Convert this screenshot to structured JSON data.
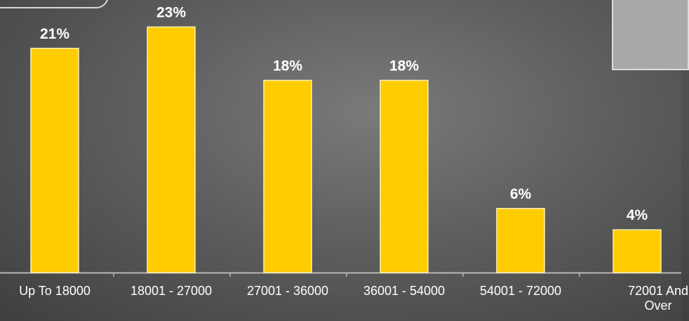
{
  "chart_data": {
    "type": "bar",
    "categories": [
      [
        "Up To 18000"
      ],
      [
        "18001 - 27000"
      ],
      [
        "27001 - 36000"
      ],
      [
        "36001 - 54000"
      ],
      [
        "54001 - 72000"
      ],
      [
        "72001 And",
        "Over"
      ]
    ],
    "values": [
      21,
      23,
      18,
      18,
      6,
      4
    ],
    "data_labels": [
      "21%",
      "23%",
      "18%",
      "18%",
      "6%",
      "4%"
    ],
    "ylim": [
      0,
      25
    ],
    "grid": false,
    "legend": "none",
    "bar_color": "#ffcc00",
    "axis_color": "#b8b8b8"
  }
}
